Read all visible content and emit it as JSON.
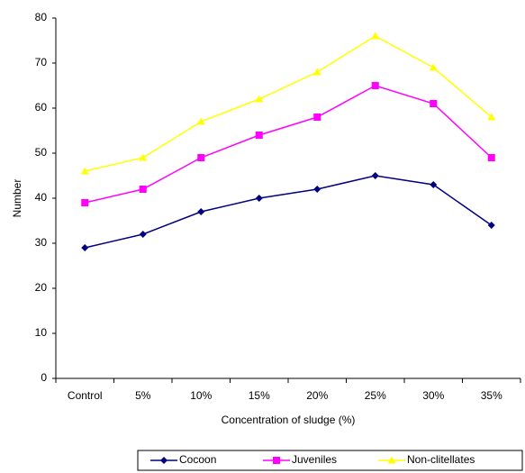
{
  "chart_data": {
    "type": "line",
    "x_label": "Concentration of sludge (%)",
    "y_label": "Number",
    "categories": [
      "Control",
      "5%",
      "10%",
      "15%",
      "20%",
      "25%",
      "30%",
      "35%"
    ],
    "series": [
      {
        "name": "Cocoon",
        "color": "#000080",
        "marker": "diamond",
        "values": [
          29,
          32,
          37,
          40,
          42,
          45,
          43,
          34
        ]
      },
      {
        "name": "Juveniles",
        "color": "#ff00ff",
        "marker": "square",
        "values": [
          39,
          42,
          49,
          54,
          58,
          65,
          61,
          49
        ]
      },
      {
        "name": "Non-clitellates",
        "color": "#ffff00",
        "marker": "triangle",
        "values": [
          46,
          49,
          57,
          62,
          68,
          76,
          69,
          58
        ]
      }
    ],
    "ylim": [
      0,
      80
    ],
    "yticks": [
      0,
      10,
      20,
      30,
      40,
      50,
      60,
      70,
      80
    ],
    "grid": false,
    "legend": "bottom"
  }
}
